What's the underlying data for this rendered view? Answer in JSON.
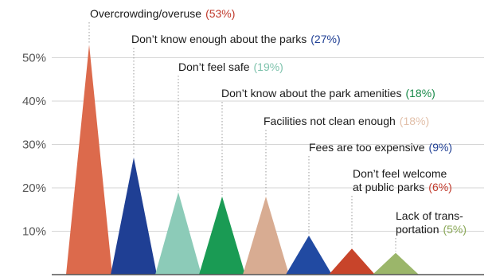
{
  "chart_data": {
    "type": "bar",
    "title": "",
    "xlabel": "",
    "ylabel": "",
    "ylim": [
      0,
      55
    ],
    "y_ticks": [
      "10%",
      "20%",
      "30%",
      "40%",
      "50%"
    ],
    "grid": true,
    "legend": "none",
    "mark_shape": "triangle",
    "series": [
      {
        "values": [
          53,
          27,
          19,
          18,
          18,
          9,
          6,
          5
        ]
      }
    ],
    "categories": [
      {
        "label_lines": [
          "Overcrowding/overuse"
        ],
        "pct": "(53%)",
        "value": 53,
        "color": "#dc6a4c",
        "pct_color": "#c0392b"
      },
      {
        "label_lines": [
          "Don’t know enough about the parks"
        ],
        "pct": "(27%)",
        "value": 27,
        "color": "#1f3f94",
        "pct_color": "#1f3f94"
      },
      {
        "label_lines": [
          "Don’t feel safe"
        ],
        "pct": "(19%)",
        "value": 19,
        "color": "#8ccbb8",
        "pct_color": "#7fc3ad"
      },
      {
        "label_lines": [
          "Don’t know about the park amenities"
        ],
        "pct": "(18%)",
        "value": 18,
        "color": "#1a9b54",
        "pct_color": "#1a8a4a"
      },
      {
        "label_lines": [
          "Facilities not clean enough"
        ],
        "pct": "(18%)",
        "value": 18,
        "color": "#d8ac92",
        "pct_color": "#e2c0aa"
      },
      {
        "label_lines": [
          "Fees are too expensive"
        ],
        "pct": "(9%)",
        "value": 9,
        "color": "#214aa2",
        "pct_color": "#1f3f94"
      },
      {
        "label_lines": [
          "Don’t feel welcome",
          "at public parks"
        ],
        "pct": "(6%)",
        "value": 6,
        "color": "#c8442a",
        "pct_color": "#c0392b"
      },
      {
        "label_lines": [
          "Lack of trans-",
          "portation"
        ],
        "pct": "(5%)",
        "value": 5,
        "color": "#9bb66a",
        "pct_color": "#8aa857"
      }
    ]
  }
}
